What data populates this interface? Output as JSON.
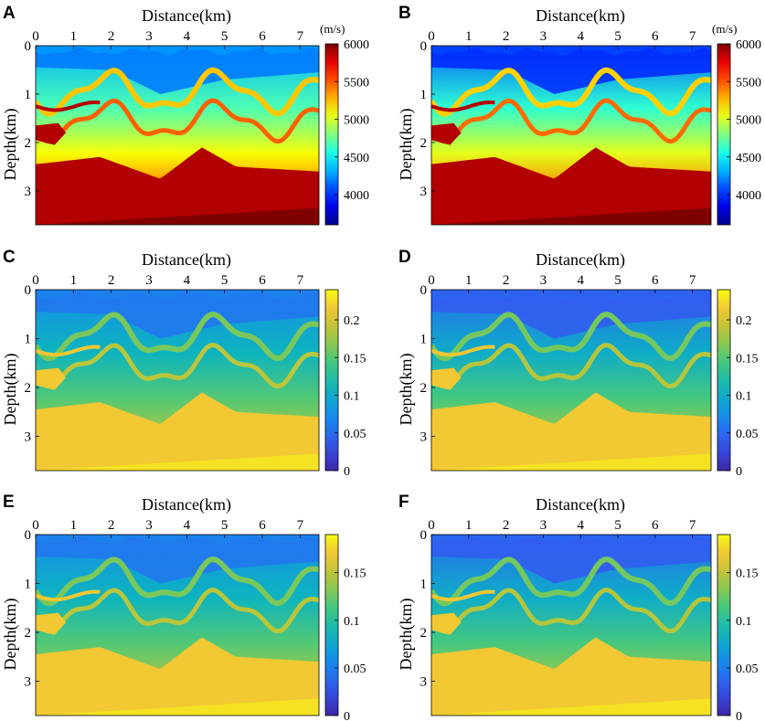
{
  "figure": {
    "chart_data": [
      {
        "panel": "A",
        "type": "heatmap",
        "xlabel": "Distance(km)",
        "ylabel": "Depth(km)",
        "xlim": [
          0,
          7.5
        ],
        "ylim": [
          0,
          3.7
        ],
        "xticks": [
          "0",
          "1",
          "2",
          "3",
          "4",
          "5",
          "6",
          "7"
        ],
        "yticks": [
          "0",
          "1",
          "2",
          "3"
        ],
        "colormap": "jet",
        "clim": [
          3600,
          6000
        ],
        "colorbar_ticks": [
          "4000",
          "4500",
          "5000",
          "5500",
          "6000"
        ],
        "colorbar_unit": "(m/s)",
        "field_range": [
          0.3,
          0.45,
          0.62,
          0.78,
          0.95,
          1.0
        ]
      },
      {
        "panel": "B",
        "type": "heatmap",
        "xlabel": "Distance(km)",
        "ylabel": "Depth(km)",
        "xlim": [
          0,
          7.5
        ],
        "ylim": [
          0,
          3.7
        ],
        "xticks": [
          "0",
          "1",
          "2",
          "3",
          "4",
          "5",
          "6",
          "7"
        ],
        "yticks": [
          "0",
          "1",
          "2",
          "3"
        ],
        "colormap": "jet",
        "clim": [
          3600,
          6000
        ],
        "colorbar_ticks": [
          "4000",
          "4500",
          "5000",
          "5500",
          "6000"
        ],
        "colorbar_unit": "(m/s)",
        "field_range": [
          0.22,
          0.42,
          0.6,
          0.77,
          0.95,
          1.0
        ]
      },
      {
        "panel": "C",
        "type": "heatmap",
        "xlabel": "Distance(km)",
        "ylabel": "Depth(km)",
        "xlim": [
          0,
          7.5
        ],
        "ylim": [
          0,
          3.7
        ],
        "xticks": [
          "0",
          "1",
          "2",
          "3",
          "4",
          "5",
          "6",
          "7"
        ],
        "yticks": [
          "0",
          "1",
          "2",
          "3"
        ],
        "colormap": "parula",
        "clim": [
          0,
          0.24
        ],
        "colorbar_ticks": [
          "0",
          "0.05",
          "0.1",
          "0.15",
          "0.2"
        ],
        "field_range": [
          0.3,
          0.45,
          0.62,
          0.78,
          0.9,
          0.95
        ]
      },
      {
        "panel": "D",
        "type": "heatmap",
        "xlabel": "Distance(km)",
        "ylabel": "Depth(km)",
        "xlim": [
          0,
          7.5
        ],
        "ylim": [
          0,
          3.7
        ],
        "xticks": [
          "0",
          "1",
          "2",
          "3",
          "4",
          "5",
          "6",
          "7"
        ],
        "yticks": [
          "0",
          "1",
          "2",
          "3"
        ],
        "colormap": "parula",
        "clim": [
          0,
          0.24
        ],
        "colorbar_ticks": [
          "0",
          "0.05",
          "0.1",
          "0.15",
          "0.2"
        ],
        "field_range": [
          0.22,
          0.42,
          0.6,
          0.77,
          0.9,
          0.95
        ]
      },
      {
        "panel": "E",
        "type": "heatmap",
        "xlabel": "Distance(km)",
        "ylabel": "Depth(km)",
        "xlim": [
          0,
          7.5
        ],
        "ylim": [
          0,
          3.7
        ],
        "xticks": [
          "0",
          "1",
          "2",
          "3",
          "4",
          "5",
          "6",
          "7"
        ],
        "yticks": [
          "0",
          "1",
          "2",
          "3"
        ],
        "colormap": "parula",
        "clim": [
          0,
          0.19
        ],
        "colorbar_ticks": [
          "0",
          "0.05",
          "0.1",
          "0.15"
        ],
        "field_range": [
          0.3,
          0.45,
          0.62,
          0.78,
          0.9,
          0.95
        ]
      },
      {
        "panel": "F",
        "type": "heatmap",
        "xlabel": "Distance(km)",
        "ylabel": "Depth(km)",
        "xlim": [
          0,
          7.5
        ],
        "ylim": [
          0,
          3.7
        ],
        "xticks": [
          "0",
          "1",
          "2",
          "3",
          "4",
          "5",
          "6",
          "7"
        ],
        "yticks": [
          "0",
          "1",
          "2",
          "3"
        ],
        "colormap": "parula",
        "clim": [
          0,
          0.19
        ],
        "colorbar_ticks": [
          "0",
          "0.05",
          "0.1",
          "0.15"
        ],
        "field_range": [
          0.22,
          0.42,
          0.6,
          0.77,
          0.9,
          0.95
        ]
      }
    ]
  }
}
